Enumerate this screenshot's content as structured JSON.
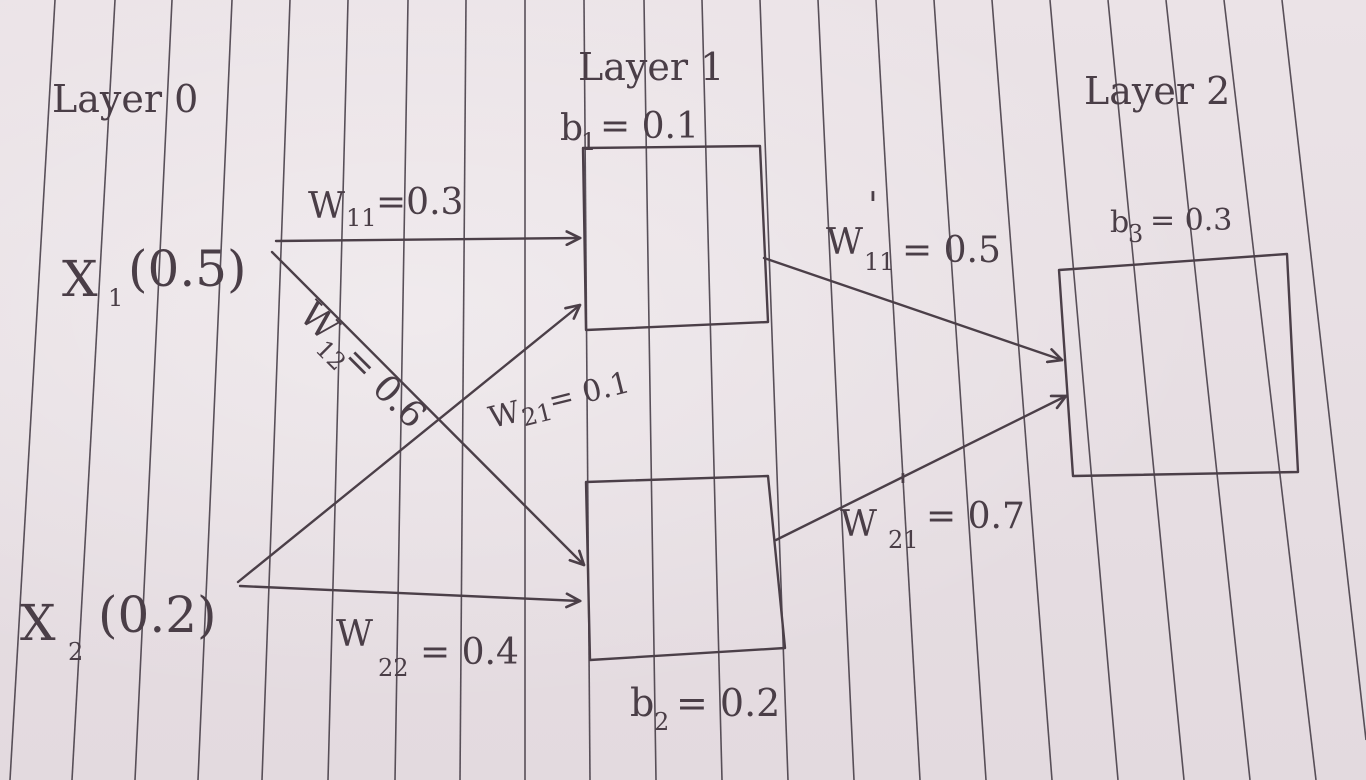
{
  "layers": {
    "layer0": "Layer 0",
    "layer1": "Layer 1",
    "layer2": "Layer 2"
  },
  "inputs": {
    "x1": {
      "var": "X",
      "sub": "1",
      "value": "(0.5)"
    },
    "x2": {
      "var": "X",
      "sub": "2",
      "value": "(0.2)"
    }
  },
  "biases": {
    "b1": {
      "var": "b",
      "sub": "1",
      "value": "= 0.1"
    },
    "b2": {
      "var": "b",
      "sub": "2",
      "value": "= 0.2"
    },
    "b3": {
      "var": "b",
      "sub": "3",
      "value": "= 0.3"
    }
  },
  "weights": {
    "w11": {
      "var": "W",
      "sub": "11",
      "value": "=0.3"
    },
    "w12": {
      "var": "W",
      "sub": "12",
      "value": "= 0.6"
    },
    "w21": {
      "var": "W",
      "sub": "21",
      "value": "= 0.1"
    },
    "w22": {
      "var": "W",
      "sub": "22",
      "value": "= 0.4"
    },
    "w11p": {
      "var": "W",
      "sub": "11",
      "prime": "'",
      "value": "= 0.5"
    },
    "w21p": {
      "var": "W",
      "sub": "21",
      "prime": "'",
      "value": "= 0.7"
    }
  },
  "colors": {
    "ink": "#4a3e47",
    "paper": "#e6dde1"
  }
}
